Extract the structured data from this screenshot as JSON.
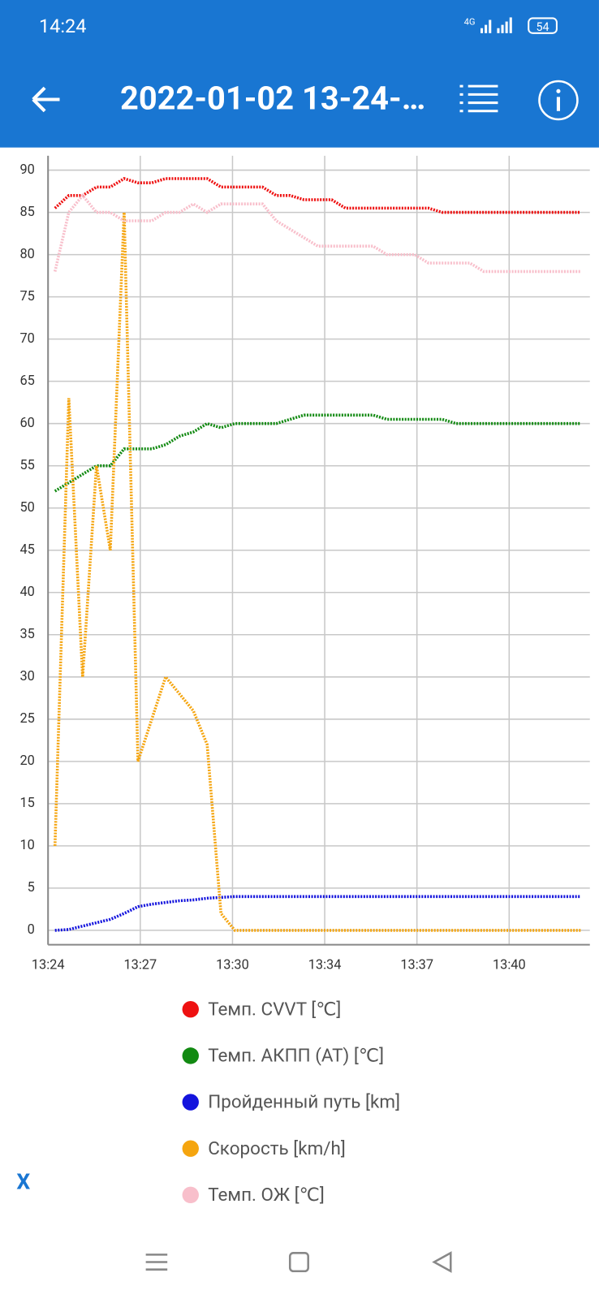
{
  "status_bar": {
    "time": "14:24",
    "network": "4G",
    "battery": "54"
  },
  "app_bar": {
    "title": "2022-01-02 13-24-…"
  },
  "close_button": "X",
  "chart_data": {
    "type": "line",
    "x": [
      15,
      45,
      75,
      105,
      135,
      165,
      195,
      225,
      255,
      285,
      315,
      345,
      375,
      405,
      435,
      465,
      495,
      525,
      555,
      585,
      615,
      645,
      675,
      705,
      735,
      765,
      795,
      825,
      855,
      885,
      915,
      945,
      975,
      1005,
      1035,
      1065,
      1095,
      1125,
      1155
    ],
    "xlim": [
      0,
      1175
    ],
    "xticks": [
      {
        "value": 0,
        "label": "13:24"
      },
      {
        "value": 200,
        "label": "13:27"
      },
      {
        "value": 400,
        "label": "13:30"
      },
      {
        "value": 600,
        "label": "13:34"
      },
      {
        "value": 800,
        "label": "13:37"
      },
      {
        "value": 1000,
        "label": "13:40"
      }
    ],
    "ylim": [
      -1.7,
      91.7
    ],
    "yticks": [
      0,
      5,
      10,
      15,
      20,
      25,
      30,
      35,
      40,
      45,
      50,
      55,
      60,
      65,
      70,
      75,
      80,
      85,
      90
    ],
    "grid": true,
    "series": [
      {
        "name": "Темп. CVVT [℃]",
        "color": "#ee1111",
        "values": [
          85.5,
          87,
          87,
          88,
          88,
          89,
          88.5,
          88.5,
          89,
          89,
          89,
          89,
          88,
          88,
          88,
          88,
          87,
          87,
          86.5,
          86.5,
          86.5,
          85.5,
          85.5,
          85.5,
          85.5,
          85.5,
          85.5,
          85.5,
          85,
          85,
          85,
          85,
          85,
          85,
          85,
          85,
          85,
          85,
          85
        ]
      },
      {
        "name": "Темп. АКПП (AT) [℃]",
        "color": "#128a12",
        "values": [
          52,
          53,
          54,
          55,
          55,
          57,
          57,
          57,
          57.5,
          58.5,
          59,
          60,
          59.5,
          60,
          60,
          60,
          60,
          60.5,
          61,
          61,
          61,
          61,
          61,
          61,
          60.5,
          60.5,
          60.5,
          60.5,
          60.5,
          60,
          60,
          60,
          60,
          60,
          60,
          60,
          60,
          60,
          60
        ]
      },
      {
        "name": "Пройденный путь [km]",
        "color": "#1414dd",
        "values": [
          0,
          0.1,
          0.5,
          0.9,
          1.3,
          2,
          2.8,
          3.1,
          3.3,
          3.5,
          3.6,
          3.8,
          3.9,
          4,
          4,
          4,
          4,
          4,
          4,
          4,
          4,
          4,
          4,
          4,
          4,
          4,
          4,
          4,
          4,
          4,
          4,
          4,
          4,
          4,
          4,
          4,
          4,
          4,
          4
        ]
      },
      {
        "name": "Скорость [km/h]",
        "color": "#f5a50f",
        "values": [
          10,
          63,
          30,
          55,
          45,
          85,
          20,
          25,
          30,
          28,
          26,
          22,
          2,
          0,
          0,
          0,
          0,
          0,
          0,
          0,
          0,
          0,
          0,
          0,
          0,
          0,
          0,
          0,
          0,
          0,
          0,
          0,
          0,
          0,
          0,
          0,
          0,
          0,
          0
        ]
      },
      {
        "name": "Темп. ОЖ [℃]",
        "color": "#f8bfcb",
        "values": [
          78,
          85,
          87,
          85,
          85,
          84,
          84,
          84,
          85,
          85,
          86,
          85,
          86,
          86,
          86,
          86,
          84,
          83,
          82,
          81,
          81,
          81,
          81,
          81,
          80,
          80,
          80,
          79,
          79,
          79,
          79,
          78,
          78,
          78,
          78,
          78,
          78,
          78,
          78
        ]
      }
    ]
  }
}
